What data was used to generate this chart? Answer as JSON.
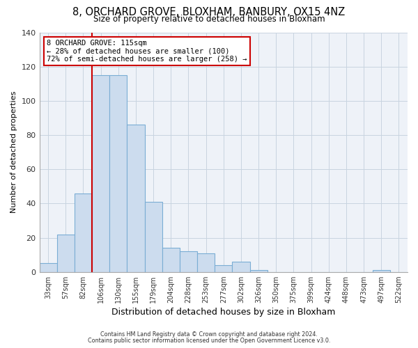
{
  "title": "8, ORCHARD GROVE, BLOXHAM, BANBURY, OX15 4NZ",
  "subtitle": "Size of property relative to detached houses in Bloxham",
  "xlabel": "Distribution of detached houses by size in Bloxham",
  "ylabel": "Number of detached properties",
  "bar_labels": [
    "33sqm",
    "57sqm",
    "82sqm",
    "106sqm",
    "130sqm",
    "155sqm",
    "179sqm",
    "204sqm",
    "228sqm",
    "253sqm",
    "277sqm",
    "302sqm",
    "326sqm",
    "350sqm",
    "375sqm",
    "399sqm",
    "424sqm",
    "448sqm",
    "473sqm",
    "497sqm",
    "522sqm"
  ],
  "bar_values": [
    5,
    22,
    46,
    115,
    115,
    86,
    41,
    14,
    12,
    11,
    4,
    6,
    1,
    0,
    0,
    0,
    0,
    0,
    0,
    1,
    0
  ],
  "bar_color": "#ccdcee",
  "bar_edge_color": "#7aadd4",
  "vline_index": 3,
  "vline_color": "#cc0000",
  "annotation_text": "8 ORCHARD GROVE: 115sqm\n← 28% of detached houses are smaller (100)\n72% of semi-detached houses are larger (258) →",
  "annotation_box_facecolor": "#ffffff",
  "annotation_box_edgecolor": "#cc0000",
  "ylim": [
    0,
    140
  ],
  "yticks": [
    0,
    20,
    40,
    60,
    80,
    100,
    120,
    140
  ],
  "grid_color": "#c8d4e0",
  "fig_bg_color": "#ffffff",
  "plot_bg_color": "#eef2f8",
  "footer1": "Contains HM Land Registry data © Crown copyright and database right 2024.",
  "footer2": "Contains public sector information licensed under the Open Government Licence v3.0.",
  "title_fontsize": 10.5,
  "subtitle_fontsize": 8.5,
  "xlabel_fontsize": 9,
  "ylabel_fontsize": 8,
  "annot_fontsize": 7.5
}
